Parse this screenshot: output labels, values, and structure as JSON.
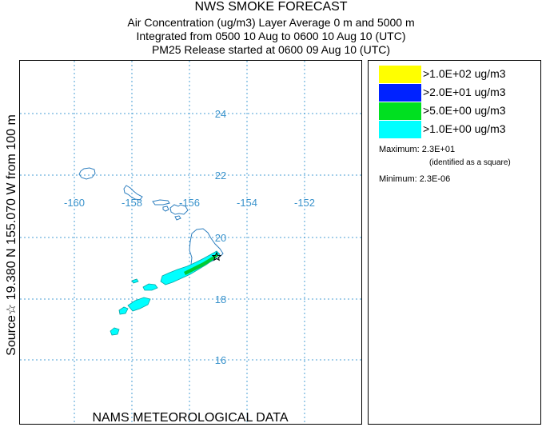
{
  "header": {
    "title": "NWS SMOKE FORECAST",
    "line1": "Air Concentration (ug/m3) Layer Average    0 m and  5000 m",
    "line2": "Integrated from 0500 10 Aug to 0600 10 Aug 10 (UTC)",
    "line3": "PM25 Release started at 0600 09 Aug 10 (UTC)"
  },
  "source_label": "Source☆ 19.380  N 155.070  W        from   100 m",
  "footer": "NAMS METEOROLOGICAL DATA",
  "map": {
    "lon_labels": [
      "-160",
      "-158",
      "-156",
      "-154",
      "-152"
    ],
    "lat_labels": [
      "24",
      "22",
      "20",
      "18",
      "16"
    ],
    "grid_color": "#4a9fd4",
    "coast_color": "#2e7fbf",
    "plume_color": "#00ffff",
    "core_color": "#00cc33"
  },
  "legend": {
    "items": [
      {
        "label": ">1.0E+02 ug/m3",
        "color": "#ffff00"
      },
      {
        "label": ">2.0E+01 ug/m3",
        "color": "#0022ff"
      },
      {
        "label": ">5.0E+00 ug/m3",
        "color": "#00e020"
      },
      {
        "label": ">1.0E+00 ug/m3",
        "color": "#00ffff"
      }
    ],
    "maximum": "Maximum: 2.3E+01",
    "maximum_note": "(identified as a square)",
    "minimum": "Minimum: 2.3E-06"
  }
}
